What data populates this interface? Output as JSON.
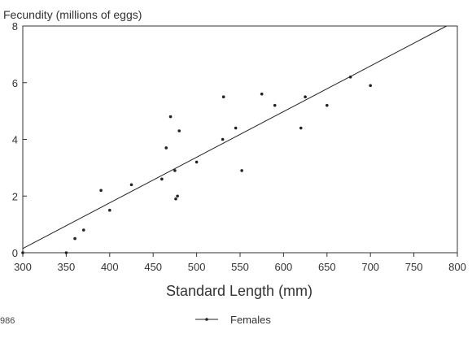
{
  "chart_data": {
    "type": "scatter",
    "title": "",
    "ylabel": "Fecundity (millions of eggs)",
    "xlabel": "Standard Length (mm)",
    "xlim": [
      300,
      800
    ],
    "ylim": [
      0,
      8
    ],
    "xticks": [
      300,
      350,
      400,
      450,
      500,
      550,
      600,
      650,
      700,
      750,
      800
    ],
    "yticks": [
      0,
      2,
      4,
      6,
      8
    ],
    "grid": false,
    "legend_position": "bottom-center",
    "series": [
      {
        "name": "Females",
        "color": "#222222",
        "points": [
          [
            300,
            0.0
          ],
          [
            350,
            0.0
          ],
          [
            360,
            0.5
          ],
          [
            370,
            0.8
          ],
          [
            390,
            2.2
          ],
          [
            400,
            1.5
          ],
          [
            425,
            2.4
          ],
          [
            460,
            2.6
          ],
          [
            465,
            3.7
          ],
          [
            470,
            4.8
          ],
          [
            475,
            2.9
          ],
          [
            476,
            1.9
          ],
          [
            478,
            2.0
          ],
          [
            480,
            4.3
          ],
          [
            500,
            3.2
          ],
          [
            530,
            4.0
          ],
          [
            531,
            5.5
          ],
          [
            545,
            4.4
          ],
          [
            552,
            2.9
          ],
          [
            575,
            5.6
          ],
          [
            590,
            5.2
          ],
          [
            620,
            4.4
          ],
          [
            625,
            5.5
          ],
          [
            650,
            5.2
          ],
          [
            677,
            6.2
          ],
          [
            700,
            5.9
          ]
        ]
      }
    ],
    "fit_line": {
      "x": [
        300,
        800
      ],
      "y": [
        0.15,
        8.2
      ]
    }
  },
  "footnote": "986"
}
